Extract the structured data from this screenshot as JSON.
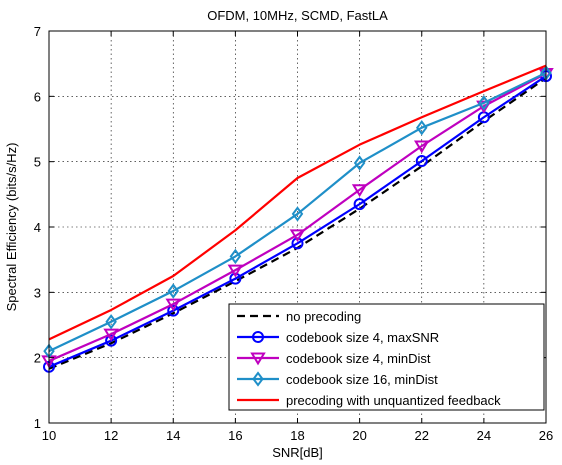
{
  "chart_data": {
    "type": "line",
    "title": "OFDM, 10MHz, SCMD, FastLA",
    "xlabel": "SNR[dB]",
    "ylabel": "Spectral Efficiency (bits/s/Hz)",
    "xlim": [
      10,
      26
    ],
    "ylim": [
      1,
      7
    ],
    "xticks": [
      10,
      12,
      14,
      16,
      18,
      20,
      22,
      24,
      26
    ],
    "yticks": [
      1,
      2,
      3,
      4,
      5,
      6,
      7
    ],
    "grid": true,
    "legend_position": "bottom-right",
    "series": [
      {
        "name": "no precoding",
        "color": "#000000",
        "line": "dashed",
        "marker": "none",
        "x": [
          10,
          12,
          14,
          16,
          18,
          20,
          22,
          24,
          26
        ],
        "y": [
          1.83,
          2.22,
          2.68,
          3.17,
          3.68,
          4.28,
          4.93,
          5.62,
          6.28
        ]
      },
      {
        "name": "codebook size 4, maxSNR",
        "color": "#0000ff",
        "line": "solid",
        "marker": "circle",
        "x": [
          10,
          12,
          14,
          16,
          18,
          20,
          22,
          24,
          26
        ],
        "y": [
          1.86,
          2.26,
          2.72,
          3.21,
          3.75,
          4.35,
          5.01,
          5.68,
          6.31
        ]
      },
      {
        "name": "codebook size 4, minDist",
        "color": "#bf00bf",
        "line": "solid",
        "marker": "triangle-down",
        "x": [
          10,
          12,
          14,
          16,
          18,
          20,
          22,
          24,
          26
        ],
        "y": [
          1.95,
          2.36,
          2.82,
          3.34,
          3.88,
          4.57,
          5.24,
          5.85,
          6.35
        ]
      },
      {
        "name": "codebook size 16, minDist",
        "color": "#1f8fc8",
        "line": "solid",
        "marker": "diamond",
        "x": [
          10,
          12,
          14,
          16,
          18,
          20,
          22,
          24,
          26
        ],
        "y": [
          2.1,
          2.55,
          3.02,
          3.55,
          4.2,
          4.98,
          5.52,
          5.9,
          6.36
        ]
      },
      {
        "name": "precoding with unquantized feedback",
        "color": "#ff0000",
        "line": "solid",
        "marker": "none",
        "x": [
          10,
          12,
          14,
          16,
          18,
          20,
          22,
          24,
          26
        ],
        "y": [
          2.28,
          2.73,
          3.25,
          3.95,
          4.75,
          5.26,
          5.68,
          6.08,
          6.47
        ]
      }
    ]
  }
}
